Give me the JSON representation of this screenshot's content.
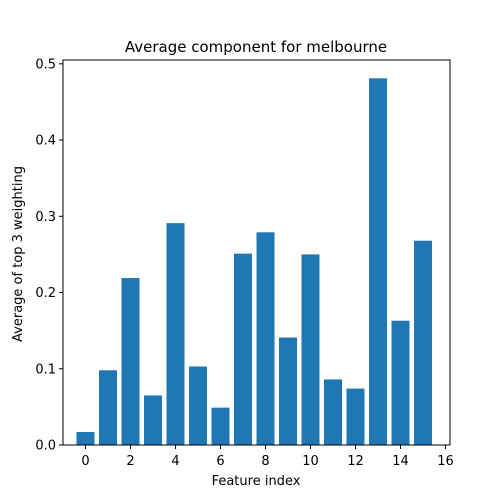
{
  "chart_data": {
    "type": "bar",
    "title": "Average component for melbourne",
    "xlabel": "Feature index",
    "ylabel": "Average of top 3 weighting",
    "categories": [
      0,
      1,
      2,
      3,
      4,
      5,
      6,
      7,
      8,
      9,
      10,
      11,
      12,
      13,
      14,
      15
    ],
    "values": [
      0.017,
      0.098,
      0.219,
      0.065,
      0.291,
      0.103,
      0.049,
      0.251,
      0.279,
      0.141,
      0.25,
      0.086,
      0.074,
      0.481,
      0.163,
      0.268
    ],
    "xlim": [
      -1,
      16.2
    ],
    "ylim": [
      0,
      0.505
    ],
    "xticks": [
      0,
      2,
      4,
      6,
      8,
      10,
      12,
      14,
      16
    ],
    "xtick_labels": [
      "0",
      "2",
      "4",
      "6",
      "8",
      "10",
      "12",
      "14",
      "16"
    ],
    "yticks": [
      0.0,
      0.1,
      0.2,
      0.3,
      0.4,
      0.5
    ],
    "ytick_labels": [
      "0.0",
      "0.1",
      "0.2",
      "0.3",
      "0.4",
      "0.5"
    ],
    "grid": false,
    "legend": "none",
    "bar_color": "#1f77b4"
  }
}
